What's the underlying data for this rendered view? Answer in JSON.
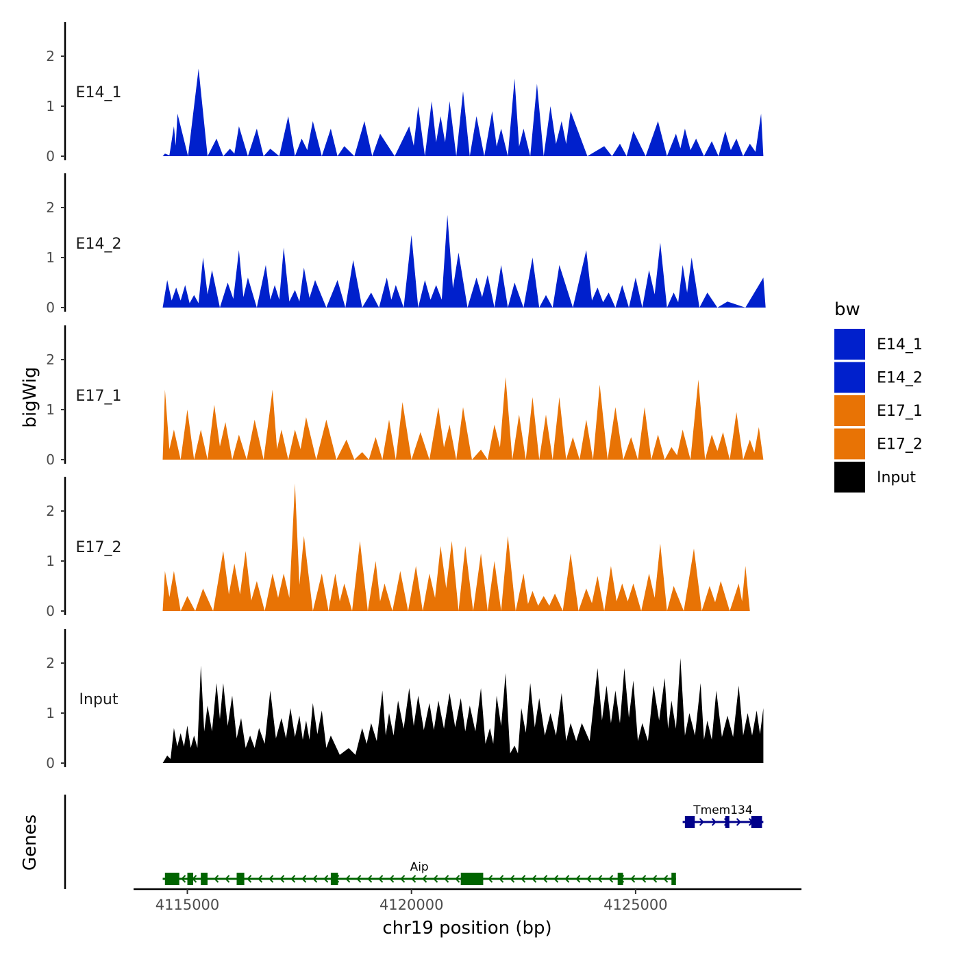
{
  "chart_data": {
    "type": "area",
    "title": "",
    "xlabel": "chr19 position (bp)",
    "ylabel": "bigWig",
    "genes_label": "Genes",
    "xlim": [
      4113800,
      4128700
    ],
    "x_ticks": [
      4115000,
      4120000,
      4125000
    ],
    "x_tick_labels": [
      "4115000",
      "4120000",
      "4125000"
    ],
    "ylim": [
      0,
      2.7
    ],
    "y_ticks": [
      0,
      1,
      2
    ],
    "y_tick_labels": [
      "0",
      "1",
      "2"
    ],
    "legend": {
      "title": "bw",
      "entries": [
        {
          "label": "E14_1",
          "color": "#0020CC"
        },
        {
          "label": "E14_2",
          "color": "#0020CC"
        },
        {
          "label": "E17_1",
          "color": "#E87305"
        },
        {
          "label": "E17_2",
          "color": "#E87305"
        },
        {
          "label": "Input",
          "color": "#000000"
        }
      ]
    },
    "tracks": [
      {
        "name": "E14_1",
        "color": "#0020CC",
        "x_range": [
          4114450,
          4127850
        ],
        "peaks": [
          [
            4114500,
            0.05
          ],
          [
            4114700,
            0.6
          ],
          [
            4114780,
            0.85
          ],
          [
            4115250,
            1.75
          ],
          [
            4115650,
            0.35
          ],
          [
            4115950,
            0.15
          ],
          [
            4116150,
            0.6
          ],
          [
            4116550,
            0.55
          ],
          [
            4116850,
            0.15
          ],
          [
            4117250,
            0.8
          ],
          [
            4117550,
            0.35
          ],
          [
            4117800,
            0.7
          ],
          [
            4118200,
            0.55
          ],
          [
            4118500,
            0.2
          ],
          [
            4118950,
            0.7
          ],
          [
            4119300,
            0.45
          ],
          [
            4119950,
            0.6
          ],
          [
            4120150,
            1.0
          ],
          [
            4120450,
            1.1
          ],
          [
            4120650,
            0.8
          ],
          [
            4120850,
            1.1
          ],
          [
            4121150,
            1.3
          ],
          [
            4121450,
            0.8
          ],
          [
            4121800,
            0.9
          ],
          [
            4122000,
            0.55
          ],
          [
            4122300,
            1.55
          ],
          [
            4122500,
            0.55
          ],
          [
            4122800,
            1.45
          ],
          [
            4123100,
            1.0
          ],
          [
            4123350,
            0.7
          ],
          [
            4123550,
            0.9
          ],
          [
            4124300,
            0.2
          ],
          [
            4124650,
            0.25
          ],
          [
            4124950,
            0.5
          ],
          [
            4125500,
            0.7
          ],
          [
            4125900,
            0.45
          ],
          [
            4126100,
            0.55
          ],
          [
            4126350,
            0.35
          ],
          [
            4126700,
            0.3
          ],
          [
            4127000,
            0.5
          ],
          [
            4127250,
            0.35
          ],
          [
            4127550,
            0.25
          ],
          [
            4127800,
            0.85
          ]
        ]
      },
      {
        "name": "E14_2",
        "color": "#0020CC",
        "x_range": [
          4114450,
          4127900
        ],
        "peaks": [
          [
            4114550,
            0.55
          ],
          [
            4114750,
            0.4
          ],
          [
            4114950,
            0.45
          ],
          [
            4115150,
            0.25
          ],
          [
            4115350,
            1.0
          ],
          [
            4115550,
            0.75
          ],
          [
            4115900,
            0.5
          ],
          [
            4116150,
            1.15
          ],
          [
            4116350,
            0.6
          ],
          [
            4116750,
            0.85
          ],
          [
            4116950,
            0.45
          ],
          [
            4117150,
            1.2
          ],
          [
            4117400,
            0.35
          ],
          [
            4117600,
            0.8
          ],
          [
            4117850,
            0.55
          ],
          [
            4118350,
            0.55
          ],
          [
            4118700,
            0.95
          ],
          [
            4119100,
            0.3
          ],
          [
            4119450,
            0.6
          ],
          [
            4119650,
            0.45
          ],
          [
            4120000,
            1.45
          ],
          [
            4120300,
            0.55
          ],
          [
            4120550,
            0.45
          ],
          [
            4120800,
            1.85
          ],
          [
            4121050,
            1.1
          ],
          [
            4121450,
            0.6
          ],
          [
            4121700,
            0.65
          ],
          [
            4122000,
            0.85
          ],
          [
            4122300,
            0.5
          ],
          [
            4122700,
            1.0
          ],
          [
            4123000,
            0.25
          ],
          [
            4123300,
            0.85
          ],
          [
            4123900,
            1.15
          ],
          [
            4124150,
            0.4
          ],
          [
            4124400,
            0.3
          ],
          [
            4124700,
            0.45
          ],
          [
            4125000,
            0.6
          ],
          [
            4125300,
            0.75
          ],
          [
            4125550,
            1.3
          ],
          [
            4125850,
            0.3
          ],
          [
            4126050,
            0.85
          ],
          [
            4126250,
            1.0
          ],
          [
            4126600,
            0.3
          ],
          [
            4127050,
            0.12
          ],
          [
            4127850,
            0.6
          ]
        ]
      },
      {
        "name": "E17_1",
        "color": "#E87305",
        "x_range": [
          4114450,
          4127850
        ],
        "peaks": [
          [
            4114500,
            1.4
          ],
          [
            4114700,
            0.6
          ],
          [
            4115000,
            1.0
          ],
          [
            4115300,
            0.6
          ],
          [
            4115600,
            1.1
          ],
          [
            4115850,
            0.75
          ],
          [
            4116150,
            0.5
          ],
          [
            4116500,
            0.8
          ],
          [
            4116900,
            1.4
          ],
          [
            4117100,
            0.6
          ],
          [
            4117400,
            0.6
          ],
          [
            4117650,
            0.85
          ],
          [
            4118100,
            0.8
          ],
          [
            4118550,
            0.4
          ],
          [
            4118900,
            0.15
          ],
          [
            4119200,
            0.45
          ],
          [
            4119500,
            0.8
          ],
          [
            4119800,
            1.15
          ],
          [
            4120200,
            0.55
          ],
          [
            4120600,
            1.05
          ],
          [
            4120850,
            0.7
          ],
          [
            4121150,
            1.05
          ],
          [
            4121550,
            0.2
          ],
          [
            4121850,
            0.7
          ],
          [
            4122100,
            1.65
          ],
          [
            4122400,
            0.9
          ],
          [
            4122700,
            1.25
          ],
          [
            4123000,
            0.9
          ],
          [
            4123300,
            1.25
          ],
          [
            4123600,
            0.45
          ],
          [
            4123900,
            0.8
          ],
          [
            4124200,
            1.5
          ],
          [
            4124550,
            1.05
          ],
          [
            4124900,
            0.45
          ],
          [
            4125200,
            1.05
          ],
          [
            4125500,
            0.5
          ],
          [
            4125800,
            0.25
          ],
          [
            4126050,
            0.6
          ],
          [
            4126400,
            1.6
          ],
          [
            4126700,
            0.5
          ],
          [
            4126950,
            0.55
          ],
          [
            4127250,
            0.95
          ],
          [
            4127550,
            0.4
          ],
          [
            4127750,
            0.65
          ]
        ]
      },
      {
        "name": "E17_2",
        "color": "#E87305",
        "x_range": [
          4114450,
          4127550
        ],
        "peaks": [
          [
            4114500,
            0.8
          ],
          [
            4114700,
            0.8
          ],
          [
            4115000,
            0.3
          ],
          [
            4115350,
            0.45
          ],
          [
            4115800,
            1.2
          ],
          [
            4116050,
            0.95
          ],
          [
            4116300,
            1.2
          ],
          [
            4116550,
            0.6
          ],
          [
            4116900,
            0.75
          ],
          [
            4117150,
            0.75
          ],
          [
            4117400,
            2.55
          ],
          [
            4117600,
            1.5
          ],
          [
            4118000,
            0.75
          ],
          [
            4118300,
            0.75
          ],
          [
            4118500,
            0.55
          ],
          [
            4118850,
            1.4
          ],
          [
            4119200,
            1.0
          ],
          [
            4119400,
            0.55
          ],
          [
            4119750,
            0.8
          ],
          [
            4120100,
            0.9
          ],
          [
            4120400,
            0.75
          ],
          [
            4120650,
            1.3
          ],
          [
            4120900,
            1.4
          ],
          [
            4121200,
            1.3
          ],
          [
            4121550,
            1.15
          ],
          [
            4121850,
            1.0
          ],
          [
            4122150,
            1.5
          ],
          [
            4122500,
            0.75
          ],
          [
            4122700,
            0.4
          ],
          [
            4122950,
            0.3
          ],
          [
            4123200,
            0.35
          ],
          [
            4123550,
            1.15
          ],
          [
            4123900,
            0.45
          ],
          [
            4124150,
            0.7
          ],
          [
            4124450,
            0.9
          ],
          [
            4124700,
            0.55
          ],
          [
            4124950,
            0.55
          ],
          [
            4125300,
            0.75
          ],
          [
            4125550,
            1.35
          ],
          [
            4125850,
            0.5
          ],
          [
            4126300,
            1.25
          ],
          [
            4126650,
            0.5
          ],
          [
            4126900,
            0.6
          ],
          [
            4127300,
            0.55
          ],
          [
            4127450,
            0.9
          ]
        ]
      },
      {
        "name": "Input",
        "color": "#000000",
        "x_range": [
          4114450,
          4127850
        ],
        "peaks": [
          [
            4114550,
            0.15
          ],
          [
            4114700,
            0.7
          ],
          [
            4114850,
            0.6
          ],
          [
            4115000,
            0.75
          ],
          [
            4115150,
            0.55
          ],
          [
            4115300,
            1.95
          ],
          [
            4115450,
            1.15
          ],
          [
            4115650,
            1.6
          ],
          [
            4115800,
            1.6
          ],
          [
            4116000,
            1.35
          ],
          [
            4116200,
            0.9
          ],
          [
            4116400,
            0.55
          ],
          [
            4116600,
            0.7
          ],
          [
            4116850,
            1.45
          ],
          [
            4117100,
            0.9
          ],
          [
            4117300,
            1.1
          ],
          [
            4117500,
            0.95
          ],
          [
            4117650,
            0.85
          ],
          [
            4117800,
            1.2
          ],
          [
            4118000,
            1.05
          ],
          [
            4118200,
            0.55
          ],
          [
            4118600,
            0.3
          ],
          [
            4118900,
            0.7
          ],
          [
            4119100,
            0.8
          ],
          [
            4119350,
            1.45
          ],
          [
            4119500,
            1.0
          ],
          [
            4119700,
            1.25
          ],
          [
            4119950,
            1.5
          ],
          [
            4120150,
            1.35
          ],
          [
            4120400,
            1.2
          ],
          [
            4120600,
            1.25
          ],
          [
            4120850,
            1.4
          ],
          [
            4121100,
            1.3
          ],
          [
            4121300,
            1.15
          ],
          [
            4121550,
            1.5
          ],
          [
            4121750,
            0.7
          ],
          [
            4121900,
            1.35
          ],
          [
            4122100,
            1.8
          ],
          [
            4122300,
            0.35
          ],
          [
            4122450,
            1.1
          ],
          [
            4122650,
            1.6
          ],
          [
            4122850,
            1.3
          ],
          [
            4123100,
            1.0
          ],
          [
            4123350,
            1.4
          ],
          [
            4123550,
            0.8
          ],
          [
            4123800,
            0.8
          ],
          [
            4124150,
            1.9
          ],
          [
            4124350,
            1.55
          ],
          [
            4124550,
            1.45
          ],
          [
            4124750,
            1.9
          ],
          [
            4124950,
            1.65
          ],
          [
            4125150,
            0.8
          ],
          [
            4125400,
            1.55
          ],
          [
            4125650,
            1.7
          ],
          [
            4125800,
            1.25
          ],
          [
            4126000,
            2.1
          ],
          [
            4126200,
            1.0
          ],
          [
            4126450,
            1.6
          ],
          [
            4126600,
            0.85
          ],
          [
            4126800,
            1.45
          ],
          [
            4127050,
            0.95
          ],
          [
            4127300,
            1.55
          ],
          [
            4127500,
            1.0
          ],
          [
            4127700,
            1.05
          ],
          [
            4127850,
            1.1
          ]
        ]
      }
    ],
    "gene_tracks": [
      {
        "name": "Tmem134",
        "strand": "+",
        "color": "#00008B",
        "start": 4126050,
        "end": 4127850,
        "exons": [
          [
            4126100,
            4126320
          ],
          [
            4127000,
            4127050
          ],
          [
            4127580,
            4127820
          ]
        ]
      },
      {
        "name": "Aip",
        "strand": "-",
        "color": "#006400",
        "start": 4114450,
        "end": 4125900,
        "exons": [
          [
            4114500,
            4114820
          ],
          [
            4115000,
            4115130
          ],
          [
            4115300,
            4115450
          ],
          [
            4116100,
            4116270
          ],
          [
            4118200,
            4118360
          ],
          [
            4121100,
            4121600
          ],
          [
            4124600,
            4124720
          ],
          [
            4125800,
            4125900
          ]
        ]
      }
    ]
  }
}
